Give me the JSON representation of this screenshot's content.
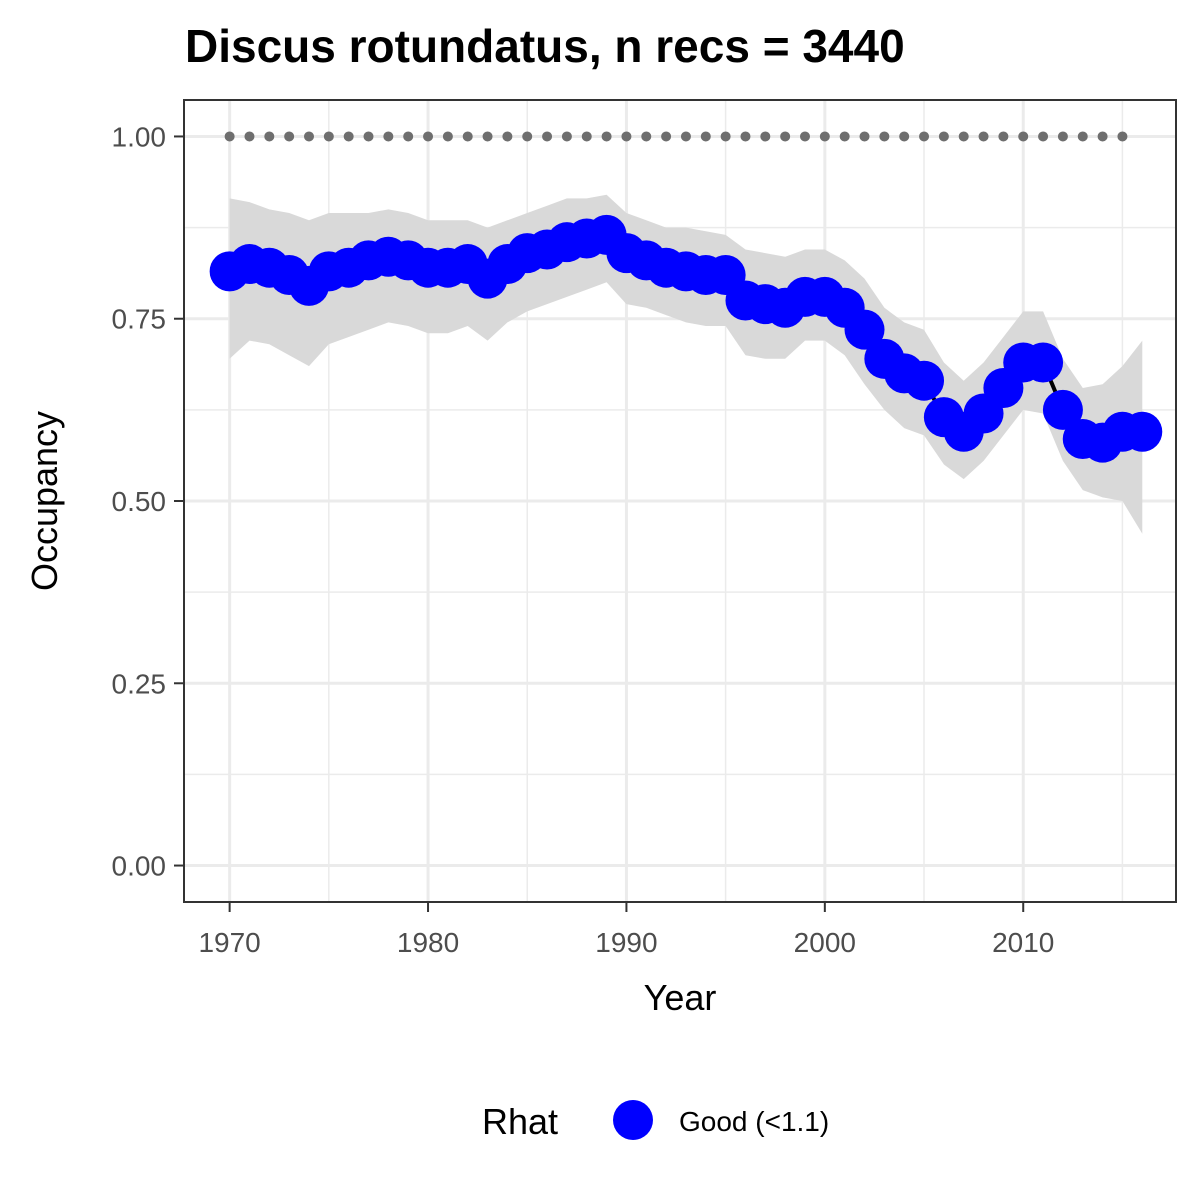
{
  "chart_data": {
    "type": "line",
    "title": "Discus rotundatus, n recs = 3440",
    "xlabel": "Year",
    "ylabel": "Occupancy",
    "xlim": [
      1967.7,
      2017.7
    ],
    "ylim": [
      -0.05,
      1.05
    ],
    "x_ticks": [
      1970,
      1980,
      1990,
      2000,
      2010
    ],
    "y_ticks": [
      0.0,
      0.25,
      0.5,
      0.75,
      1.0
    ],
    "x_tick_labels": [
      "1970",
      "1980",
      "1990",
      "2000",
      "2010"
    ],
    "y_tick_labels": [
      "0.00",
      "0.25",
      "0.50",
      "0.75",
      "1.00"
    ],
    "grid": true,
    "x": [
      1970,
      1971,
      1972,
      1973,
      1974,
      1975,
      1976,
      1977,
      1978,
      1979,
      1980,
      1981,
      1982,
      1983,
      1984,
      1985,
      1986,
      1987,
      1988,
      1989,
      1990,
      1991,
      1992,
      1993,
      1994,
      1995,
      1996,
      1997,
      1998,
      1999,
      2000,
      2001,
      2002,
      2003,
      2004,
      2005,
      2006,
      2007,
      2008,
      2009,
      2010,
      2011,
      2012,
      2013,
      2014,
      2015,
      2016
    ],
    "series": [
      {
        "name": "Good (<1.1)",
        "values": [
          0.815,
          0.825,
          0.82,
          0.81,
          0.795,
          0.815,
          0.82,
          0.83,
          0.835,
          0.83,
          0.82,
          0.82,
          0.825,
          0.805,
          0.825,
          0.84,
          0.845,
          0.855,
          0.86,
          0.865,
          0.84,
          0.83,
          0.82,
          0.815,
          0.81,
          0.81,
          0.775,
          0.77,
          0.765,
          0.78,
          0.78,
          0.765,
          0.735,
          0.695,
          0.675,
          0.665,
          0.615,
          0.595,
          0.62,
          0.655,
          0.69,
          0.69,
          0.625,
          0.585,
          0.58,
          0.595,
          0.595
        ]
      }
    ],
    "ci_lower": [
      0.695,
      0.72,
      0.715,
      0.7,
      0.685,
      0.715,
      0.725,
      0.735,
      0.745,
      0.74,
      0.73,
      0.73,
      0.74,
      0.72,
      0.745,
      0.76,
      0.77,
      0.78,
      0.79,
      0.8,
      0.77,
      0.765,
      0.755,
      0.745,
      0.74,
      0.74,
      0.7,
      0.695,
      0.695,
      0.72,
      0.72,
      0.7,
      0.66,
      0.625,
      0.6,
      0.59,
      0.55,
      0.53,
      0.555,
      0.59,
      0.625,
      0.62,
      0.555,
      0.515,
      0.505,
      0.5,
      0.455
    ],
    "ci_upper": [
      0.915,
      0.91,
      0.9,
      0.895,
      0.885,
      0.895,
      0.895,
      0.895,
      0.9,
      0.895,
      0.885,
      0.885,
      0.885,
      0.875,
      0.885,
      0.895,
      0.905,
      0.915,
      0.915,
      0.92,
      0.895,
      0.885,
      0.875,
      0.875,
      0.87,
      0.865,
      0.845,
      0.84,
      0.835,
      0.845,
      0.845,
      0.83,
      0.805,
      0.765,
      0.745,
      0.735,
      0.69,
      0.665,
      0.69,
      0.725,
      0.76,
      0.76,
      0.695,
      0.655,
      0.66,
      0.685,
      0.72
    ],
    "reference_line": {
      "value": 1.0,
      "x_from": 1970,
      "x_to": 2015,
      "style": "dotted"
    },
    "legend": {
      "title": "Rhat",
      "entries": [
        "Good (<1.1)"
      ],
      "position": "bottom"
    },
    "colors": {
      "points": "#0000ff",
      "line": "#000000",
      "ribbon": "#d9d9d9",
      "reference": "#6e6e6e",
      "grid": "#ebebeb",
      "border": "#333333"
    }
  }
}
